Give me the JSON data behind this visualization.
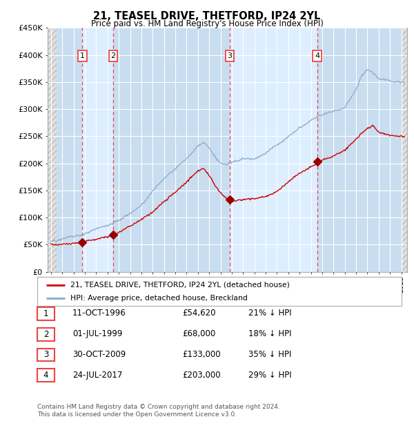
{
  "title": "21, TEASEL DRIVE, THETFORD, IP24 2YL",
  "subtitle": "Price paid vs. HM Land Registry's House Price Index (HPI)",
  "ylim": [
    0,
    450000
  ],
  "yticks": [
    0,
    50000,
    100000,
    150000,
    200000,
    250000,
    300000,
    350000,
    400000,
    450000
  ],
  "ytick_labels": [
    "£0",
    "£50K",
    "£100K",
    "£150K",
    "£200K",
    "£250K",
    "£300K",
    "£350K",
    "£400K",
    "£450K"
  ],
  "xlim_start": 1993.7,
  "xlim_end": 2025.5,
  "background_color": "#ffffff",
  "plot_bg_color": "#ddeeff",
  "grid_color": "#ffffff",
  "red_line_color": "#cc0000",
  "blue_line_color": "#88aacc",
  "sale_marker_color": "#990000",
  "dashed_line_color": "#ee4444",
  "shade_color": "#ddeeff",
  "shade_color2": "#c8ddf0",
  "transactions": [
    {
      "num": 1,
      "date": "11-OCT-1996",
      "price": 54620,
      "year": 1996.78
    },
    {
      "num": 2,
      "date": "01-JUL-1999",
      "price": 68000,
      "year": 1999.5
    },
    {
      "num": 3,
      "date": "30-OCT-2009",
      "price": 133000,
      "year": 2009.83
    },
    {
      "num": 4,
      "date": "24-JUL-2017",
      "price": 203000,
      "year": 2017.56
    }
  ],
  "legend_entries": [
    "21, TEASEL DRIVE, THETFORD, IP24 2YL (detached house)",
    "HPI: Average price, detached house, Breckland"
  ],
  "footer": "Contains HM Land Registry data © Crown copyright and database right 2024.\nThis data is licensed under the Open Government Licence v3.0.",
  "table_rows": [
    [
      "1",
      "11-OCT-1996",
      "£54,620",
      "21% ↓ HPI"
    ],
    [
      "2",
      "01-JUL-1999",
      "£68,000",
      "18% ↓ HPI"
    ],
    [
      "3",
      "30-OCT-2009",
      "£133,000",
      "35% ↓ HPI"
    ],
    [
      "4",
      "24-JUL-2017",
      "£203,000",
      "29% ↓ HPI"
    ]
  ]
}
